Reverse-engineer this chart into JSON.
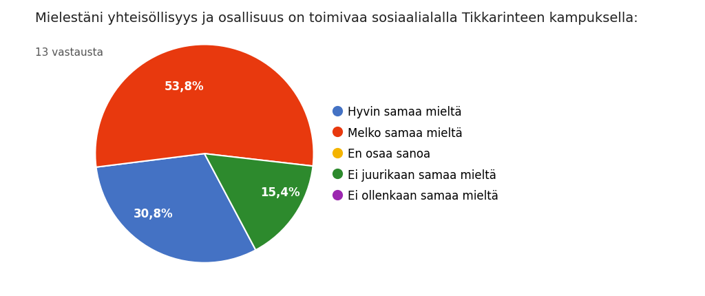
{
  "title": "Mielestäni yhteisöllisyys ja osallisuus on toimivaa sosiaalialalla Tikkarinteen kampuksella:",
  "subtitle": "13 vastausta",
  "slices": [
    30.8,
    53.8,
    0,
    15.4,
    0
  ],
  "labels": [
    "30,8%",
    "53,8%",
    "",
    "15,4%",
    ""
  ],
  "legend_labels": [
    "Hyvin samaa mieltä",
    "Melko samaa mieltä",
    "En osaa sanoa",
    "Ei juurikaan samaa mieltä",
    "Ei ollenkaan samaa mieltä"
  ],
  "colors": [
    "#4472C4",
    "#E8390E",
    "#F4B400",
    "#2D8A2D",
    "#9C27B0"
  ],
  "background_color": "#ffffff",
  "title_fontsize": 14,
  "subtitle_fontsize": 11,
  "label_fontsize": 12,
  "legend_fontsize": 12,
  "startangle": -62
}
